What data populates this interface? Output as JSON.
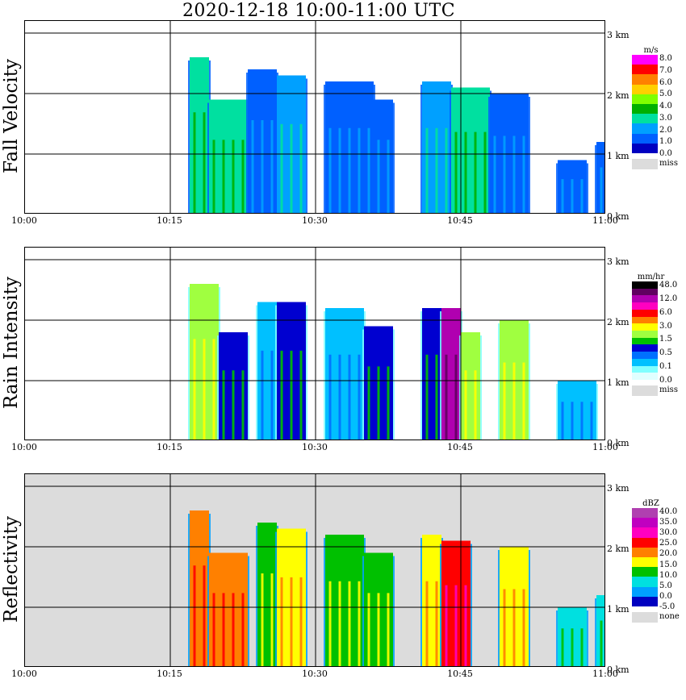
{
  "title": "2020-12-18   10:00-11:00 UTC",
  "x_tick_labels": [
    "10:00",
    "10:15",
    "10:30",
    "10:45",
    "11:00"
  ],
  "y_tick_labels": [
    "0 km",
    "1 km",
    "2 km",
    "3 km"
  ],
  "panels": [
    {
      "ylabel": "Fall Velocity",
      "unit": "m/s",
      "background": "#ffffff",
      "missing_label": "miss",
      "legend_labels": [
        "8.0",
        "7.0",
        "6.0",
        "5.0",
        "4.0",
        "3.0",
        "2.0",
        "1.0",
        "0.0"
      ],
      "legend_colors": [
        "#ff00ff",
        "#ff0000",
        "#ff8000",
        "#ffd000",
        "#80ff00",
        "#00b000",
        "#00e0a0",
        "#00a0ff",
        "#0060ff",
        "#0000c0"
      ]
    },
    {
      "ylabel": "Rain Intensity",
      "unit": "mm/hr",
      "background": "#ffffff",
      "missing_label": "miss",
      "legend_labels": [
        "48.0",
        "12.0",
        "6.0",
        "3.0",
        "1.5",
        "0.5",
        "0.1",
        "0.0"
      ],
      "legend_colors": [
        "#000000",
        "#600060",
        "#b000b0",
        "#ff00c0",
        "#ff0000",
        "#ff8000",
        "#ffff00",
        "#a0ff40",
        "#00c000",
        "#0000d0",
        "#0070ff",
        "#00c0ff",
        "#80ffff",
        "#e0ffff"
      ]
    },
    {
      "ylabel": "Reflectivity",
      "unit": "dBZ",
      "background": "#dcdcdc",
      "missing_label": "none",
      "legend_labels": [
        "40.0",
        "35.0",
        "30.0",
        "25.0",
        "20.0",
        "15.0",
        "10.0",
        "5.0",
        "0.0",
        "-5.0"
      ],
      "legend_colors": [
        "#b040b0",
        "#c000c0",
        "#ff00c0",
        "#ff0000",
        "#ff8000",
        "#ffff00",
        "#00c000",
        "#00e0e0",
        "#00a0ff",
        "#0000c0"
      ]
    }
  ],
  "chart_data": [
    {
      "type": "heatmap",
      "title": "2020-12-18   10:00-11:00 UTC",
      "ylabel": "Fall Velocity",
      "unit": "m/s",
      "x_range": [
        "10:00",
        "11:00"
      ],
      "y_range_km": [
        0,
        3.0
      ],
      "colorbar": [
        8.0,
        7.0,
        6.0,
        5.0,
        4.0,
        3.0,
        2.0,
        1.0,
        0.0
      ],
      "echo_cells": [
        {
          "start": "10:17",
          "end": "10:19",
          "top_km": 2.6,
          "value": 3.0
        },
        {
          "start": "10:19",
          "end": "10:23",
          "top_km": 1.9,
          "value": 3.5
        },
        {
          "start": "10:23",
          "end": "10:26",
          "top_km": 2.4,
          "value": 1.5
        },
        {
          "start": "10:26",
          "end": "10:29",
          "top_km": 2.3,
          "value": 2.5
        },
        {
          "start": "10:31",
          "end": "10:36",
          "top_km": 2.2,
          "value": 1.0
        },
        {
          "start": "10:36",
          "end": "10:38",
          "top_km": 1.9,
          "value": 1.0
        },
        {
          "start": "10:41",
          "end": "10:44",
          "top_km": 2.2,
          "value": 2.0
        },
        {
          "start": "10:44",
          "end": "10:48",
          "top_km": 2.1,
          "value": 3.5
        },
        {
          "start": "10:48",
          "end": "10:52",
          "top_km": 2.0,
          "value": 1.0
        },
        {
          "start": "10:55",
          "end": "10:58",
          "top_km": 0.9,
          "value": 1.0
        },
        {
          "start": "10:59",
          "end": "11:00",
          "top_km": 1.2,
          "value": 1.0
        }
      ]
    },
    {
      "type": "heatmap",
      "ylabel": "Rain Intensity",
      "unit": "mm/hr",
      "x_range": [
        "10:00",
        "11:00"
      ],
      "y_range_km": [
        0,
        3.0
      ],
      "colorbar": [
        48.0,
        12.0,
        6.0,
        3.0,
        1.5,
        0.5,
        0.1,
        0.0
      ],
      "echo_cells": [
        {
          "start": "10:17",
          "end": "10:20",
          "top_km": 2.6,
          "value": 1.5
        },
        {
          "start": "10:20",
          "end": "10:23",
          "top_km": 1.8,
          "value": 0.5
        },
        {
          "start": "10:24",
          "end": "10:26",
          "top_km": 2.3,
          "value": 0.1
        },
        {
          "start": "10:26",
          "end": "10:29",
          "top_km": 2.3,
          "value": 0.5
        },
        {
          "start": "10:31",
          "end": "10:35",
          "top_km": 2.2,
          "value": 0.1
        },
        {
          "start": "10:35",
          "end": "10:38",
          "top_km": 1.9,
          "value": 0.5
        },
        {
          "start": "10:41",
          "end": "10:43",
          "top_km": 2.2,
          "value": 0.5
        },
        {
          "start": "10:43",
          "end": "10:45",
          "top_km": 2.2,
          "value": 12.0
        },
        {
          "start": "10:45",
          "end": "10:47",
          "top_km": 1.8,
          "value": 1.5
        },
        {
          "start": "10:49",
          "end": "10:52",
          "top_km": 2.0,
          "value": 1.5
        },
        {
          "start": "10:55",
          "end": "10:59",
          "top_km": 1.0,
          "value": 0.1
        }
      ]
    },
    {
      "type": "heatmap",
      "ylabel": "Reflectivity",
      "unit": "dBZ",
      "x_range": [
        "10:00",
        "11:00"
      ],
      "y_range_km": [
        0,
        3.0
      ],
      "colorbar": [
        40.0,
        35.0,
        30.0,
        25.0,
        20.0,
        15.0,
        10.0,
        5.0,
        0.0,
        -5.0
      ],
      "echo_cells": [
        {
          "start": "10:17",
          "end": "10:19",
          "top_km": 2.6,
          "value": 20.0
        },
        {
          "start": "10:19",
          "end": "10:23",
          "top_km": 1.9,
          "value": 20.0
        },
        {
          "start": "10:24",
          "end": "10:26",
          "top_km": 2.4,
          "value": 10.0
        },
        {
          "start": "10:26",
          "end": "10:29",
          "top_km": 2.3,
          "value": 15.0
        },
        {
          "start": "10:31",
          "end": "10:35",
          "top_km": 2.2,
          "value": 10.0
        },
        {
          "start": "10:35",
          "end": "10:38",
          "top_km": 1.9,
          "value": 10.0
        },
        {
          "start": "10:41",
          "end": "10:43",
          "top_km": 2.2,
          "value": 15.0
        },
        {
          "start": "10:43",
          "end": "10:46",
          "top_km": 2.1,
          "value": 25.0
        },
        {
          "start": "10:49",
          "end": "10:52",
          "top_km": 2.0,
          "value": 15.0
        },
        {
          "start": "10:55",
          "end": "10:58",
          "top_km": 1.0,
          "value": 5.0
        },
        {
          "start": "10:59",
          "end": "11:00",
          "top_km": 1.2,
          "value": 5.0
        }
      ]
    }
  ]
}
